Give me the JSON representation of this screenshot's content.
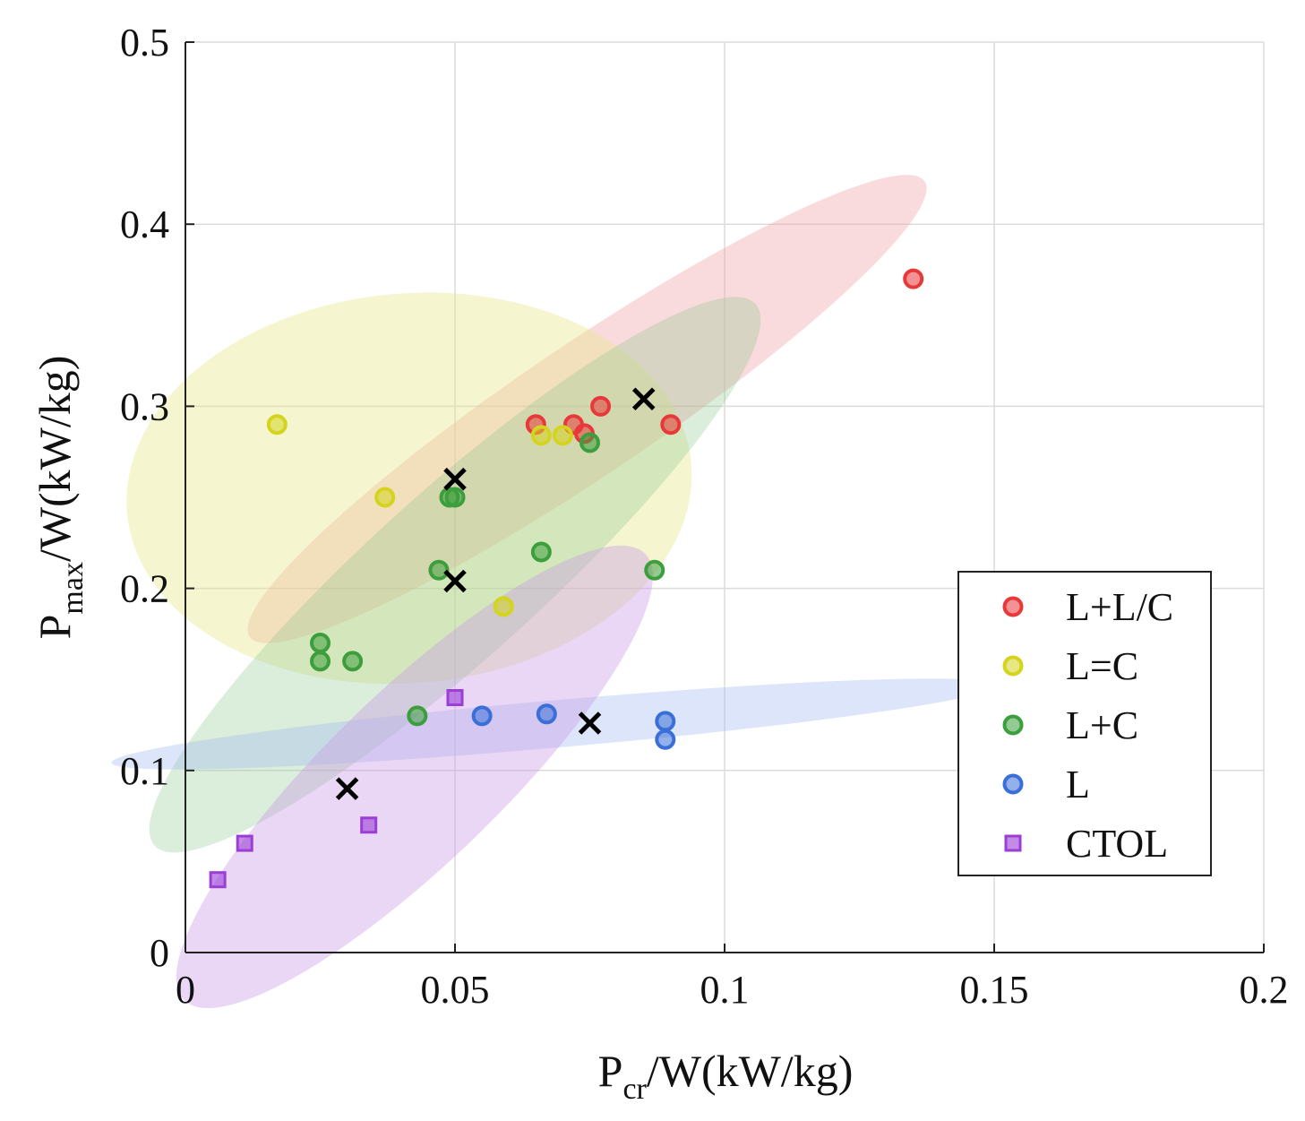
{
  "chart_data": {
    "type": "scatter",
    "xlabel": {
      "main": "P",
      "sub": "cr",
      "rest": "/W(kW/kg)"
    },
    "ylabel": {
      "main": "P",
      "sub": "max",
      "rest": "/W(kW/kg)"
    },
    "xlim": [
      0,
      0.2
    ],
    "ylim": [
      0,
      0.5
    ],
    "xticks": [
      0,
      0.05,
      0.1,
      0.15,
      0.2
    ],
    "yticks": [
      0,
      0.1,
      0.2,
      0.3,
      0.4,
      0.5
    ],
    "xtick_labels": [
      "0",
      "0.05",
      "0.1",
      "0.15",
      "0.2"
    ],
    "ytick_labels": [
      "0",
      "0.1",
      "0.2",
      "0.3",
      "0.4",
      "0.5"
    ],
    "grid": true,
    "legend_position": "right",
    "series": [
      {
        "name": "L+L/C",
        "marker": "circle",
        "color": "#e8393a",
        "points": [
          [
            0.065,
            0.29
          ],
          [
            0.072,
            0.29
          ],
          [
            0.074,
            0.285
          ],
          [
            0.077,
            0.3
          ],
          [
            0.09,
            0.29
          ],
          [
            0.135,
            0.37
          ]
        ]
      },
      {
        "name": "L=C",
        "marker": "circle",
        "color": "#d4d41f",
        "points": [
          [
            0.017,
            0.29
          ],
          [
            0.037,
            0.25
          ],
          [
            0.066,
            0.284
          ],
          [
            0.07,
            0.284
          ],
          [
            0.059,
            0.19
          ]
        ]
      },
      {
        "name": "L+C",
        "marker": "circle",
        "color": "#3c9e3c",
        "points": [
          [
            0.049,
            0.25
          ],
          [
            0.05,
            0.25
          ],
          [
            0.075,
            0.28
          ],
          [
            0.066,
            0.22
          ],
          [
            0.047,
            0.21
          ],
          [
            0.087,
            0.21
          ],
          [
            0.025,
            0.17
          ],
          [
            0.025,
            0.16
          ],
          [
            0.031,
            0.16
          ],
          [
            0.043,
            0.13
          ]
        ]
      },
      {
        "name": "L",
        "marker": "circle",
        "color": "#3a6fd8",
        "points": [
          [
            0.055,
            0.13
          ],
          [
            0.067,
            0.131
          ],
          [
            0.089,
            0.127
          ],
          [
            0.089,
            0.117
          ]
        ]
      },
      {
        "name": "CTOL",
        "marker": "square",
        "color": "#9b3ed6",
        "points": [
          [
            0.05,
            0.14
          ],
          [
            0.034,
            0.07
          ],
          [
            0.011,
            0.06
          ],
          [
            0.006,
            0.04
          ]
        ]
      }
    ],
    "centroids": {
      "marker": "x",
      "color": "#000000",
      "points": [
        [
          0.085,
          0.304
        ],
        [
          0.05,
          0.26
        ],
        [
          0.05,
          0.204
        ],
        [
          0.075,
          0.126
        ],
        [
          0.03,
          0.09
        ]
      ]
    },
    "confidence_ellipses": [
      {
        "group": "L+L/C",
        "color": "#f2a5aa",
        "opacity": 0.4,
        "center": [
          0.0745,
          0.2985
        ],
        "radii": [
          0.0755,
          0.036
        ],
        "angle_deg": 34
      },
      {
        "group": "L=C",
        "color": "#e6e68a",
        "opacity": 0.4,
        "center": [
          0.0415,
          0.255
        ],
        "radii": [
          0.0525,
          0.107
        ],
        "angle_deg": 5
      },
      {
        "group": "L+C",
        "color": "#8ec88e",
        "opacity": 0.32,
        "center": [
          0.05,
          0.2075
        ],
        "radii": [
          0.075,
          0.046
        ],
        "angle_deg": 42
      },
      {
        "group": "L",
        "color": "#a8bdf0",
        "opacity": 0.4,
        "center": [
          0.0685,
          0.1255
        ],
        "radii": [
          0.0825,
          0.013
        ],
        "angle_deg": 5
      },
      {
        "group": "CTOL",
        "color": "#c79be6",
        "opacity": 0.4,
        "center": [
          0.0425,
          0.0965
        ],
        "radii": [
          0.0595,
          0.047
        ],
        "angle_deg": 44
      }
    ]
  }
}
